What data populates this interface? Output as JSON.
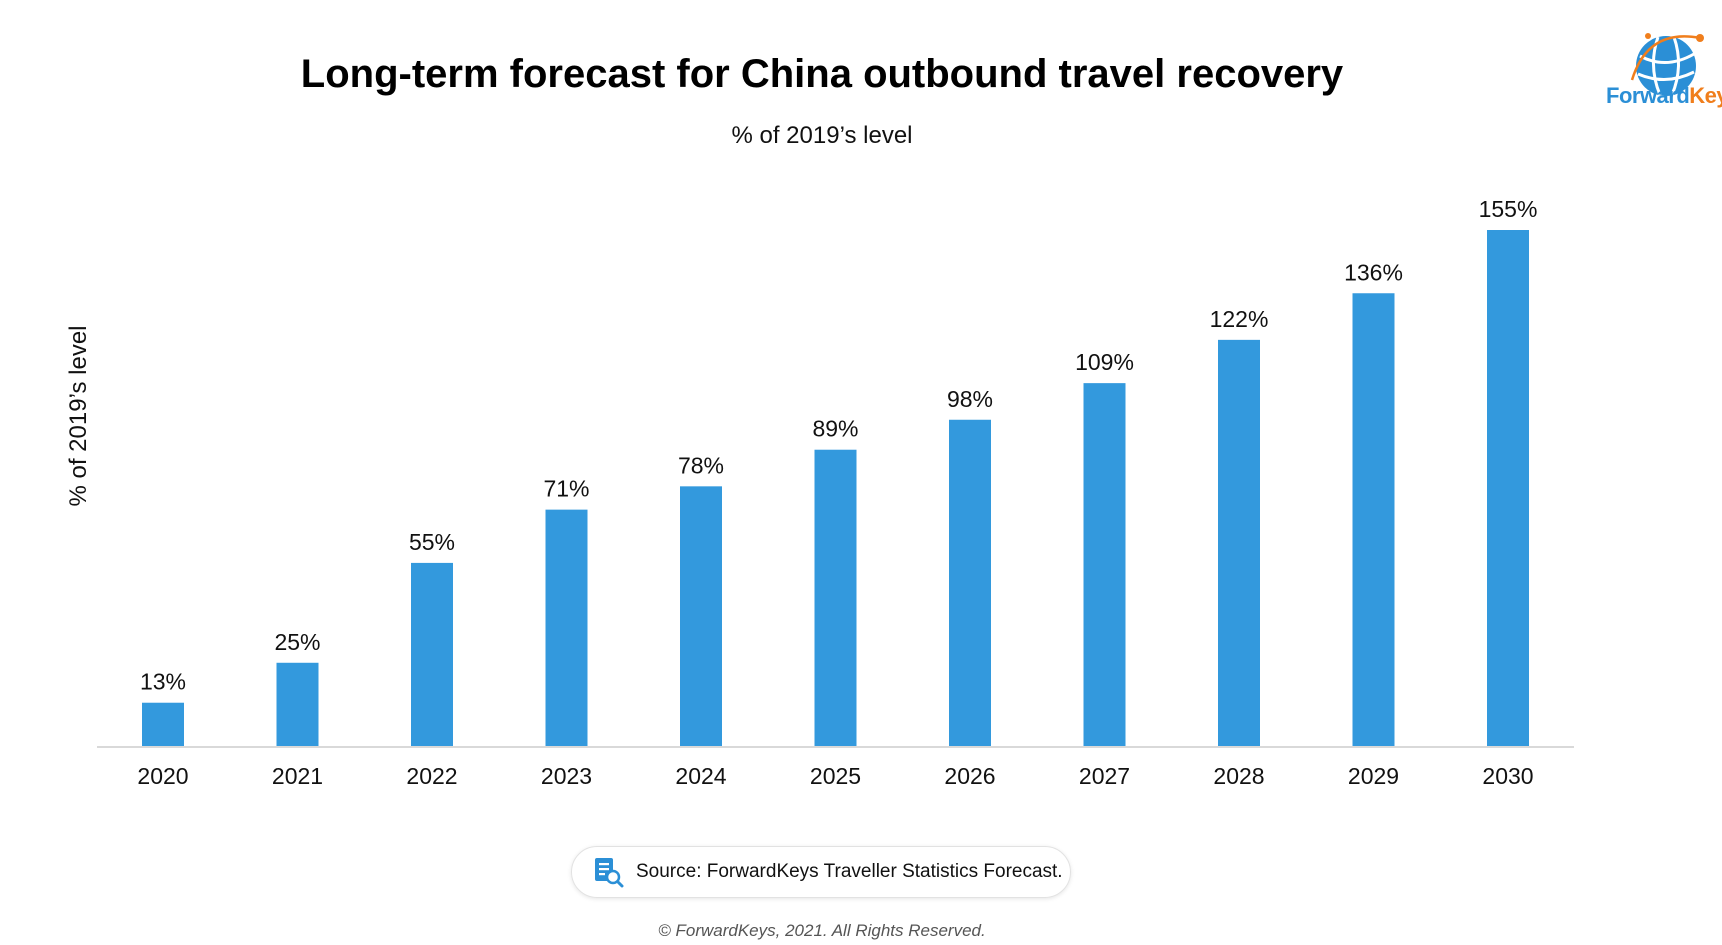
{
  "title": "Long-term forecast for China outbound travel recovery",
  "subtitle": "% of 2019’s level",
  "logo": {
    "word1": "Forward",
    "word2": "Keys",
    "icon": "globe-icon"
  },
  "source": {
    "text": "Source: ForwardKeys Traveller Statistics Forecast.",
    "icon": "document-search-icon"
  },
  "copyright": "© ForwardKeys, 2021. All Rights Reserved.",
  "colors": {
    "bar": "#3399dd",
    "axis": "#d9d9d9",
    "logo_blue": "#2b8fd6",
    "logo_orange": "#f07e1c"
  },
  "chart_data": {
    "type": "bar",
    "title": "Long-term forecast for China outbound travel recovery",
    "subtitle": "% of 2019’s level",
    "xlabel": "",
    "ylabel": "% of 2019’s level",
    "categories": [
      "2020",
      "2021",
      "2022",
      "2023",
      "2024",
      "2025",
      "2026",
      "2027",
      "2028",
      "2029",
      "2030"
    ],
    "values": [
      13,
      25,
      55,
      71,
      78,
      89,
      98,
      109,
      122,
      136,
      155
    ],
    "data_labels": [
      "13%",
      "25%",
      "55%",
      "71%",
      "78%",
      "89%",
      "98%",
      "109%",
      "122%",
      "136%",
      "155%"
    ],
    "ylim": [
      0,
      155
    ],
    "grid": false,
    "legend": "none",
    "y_axis_ticks_shown": false
  }
}
